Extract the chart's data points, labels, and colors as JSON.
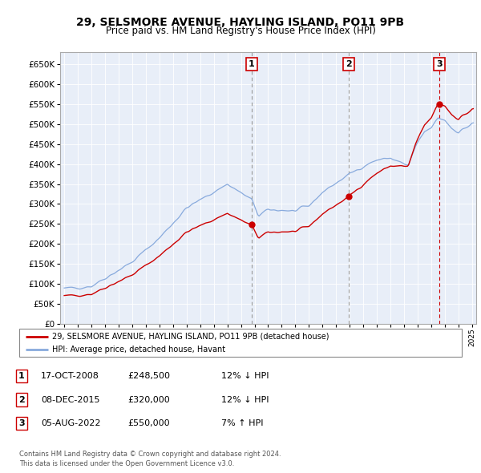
{
  "title": "29, SELSMORE AVENUE, HAYLING ISLAND, PO11 9PB",
  "subtitle": "Price paid vs. HM Land Registry's House Price Index (HPI)",
  "ytick_values": [
    0,
    50000,
    100000,
    150000,
    200000,
    250000,
    300000,
    350000,
    400000,
    450000,
    500000,
    550000,
    600000,
    650000
  ],
  "sale_years": [
    2008.79,
    2015.92,
    2022.59
  ],
  "sale_prices": [
    248500,
    320000,
    550000
  ],
  "sale_labels": [
    "1",
    "2",
    "3"
  ],
  "legend_red": "29, SELSMORE AVENUE, HAYLING ISLAND, PO11 9PB (detached house)",
  "legend_blue": "HPI: Average price, detached house, Havant",
  "table_data": [
    [
      "1",
      "17-OCT-2008",
      "£248,500",
      "12% ↓ HPI"
    ],
    [
      "2",
      "08-DEC-2015",
      "£320,000",
      "12% ↓ HPI"
    ],
    [
      "3",
      "05-AUG-2022",
      "£550,000",
      "7% ↑ HPI"
    ]
  ],
  "footnote": "Contains HM Land Registry data © Crown copyright and database right 2024.\nThis data is licensed under the Open Government Licence v3.0.",
  "red_color": "#cc0000",
  "blue_color": "#88aadd",
  "chart_bg": "#e8eef8",
  "grid_color": "#ffffff"
}
